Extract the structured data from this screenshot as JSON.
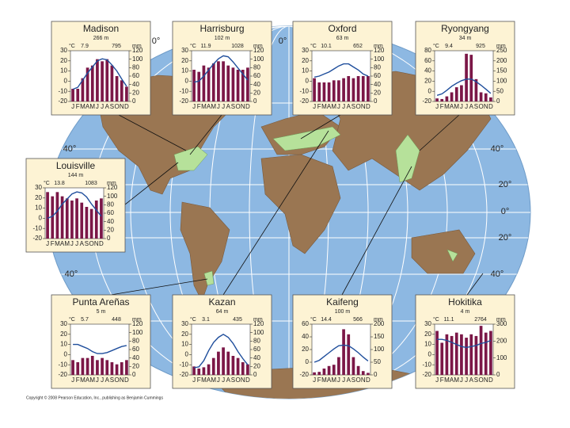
{
  "chart_data": [
    {
      "type": "bar",
      "title": "Madison",
      "subtitle": "266 m",
      "annotations": [
        "7.9",
        "795"
      ],
      "y_label": "°C",
      "y2_label": "mm",
      "categories": [
        "J",
        "F",
        "M",
        "A",
        "M",
        "J",
        "J",
        "A",
        "S",
        "O",
        "N",
        "D"
      ],
      "ylim": [
        -20,
        30
      ],
      "yticks": [
        -20,
        -10,
        0,
        10,
        20,
        30
      ],
      "y2lim": [
        0,
        120
      ],
      "y2ticks": [
        0,
        20,
        40,
        60,
        80,
        100,
        120
      ],
      "series": [
        {
          "color": "#7b1747",
          "axis": "y2",
          "values": [
            30,
            30,
            55,
            80,
            85,
            100,
            95,
            100,
            85,
            60,
            50,
            35
          ]
        },
        {
          "type": "line",
          "color": "#1f4e9c",
          "values": [
            -8,
            -6,
            1,
            8,
            14,
            20,
            22,
            21,
            16,
            10,
            2,
            -5
          ]
        }
      ]
    },
    {
      "type": "bar",
      "title": "Harrisburg",
      "subtitle": "102 m",
      "annotations": [
        "11.9",
        "1028"
      ],
      "y_label": "°C",
      "y2_label": "mm",
      "categories": [
        "J",
        "F",
        "M",
        "A",
        "M",
        "J",
        "J",
        "A",
        "S",
        "O",
        "N",
        "D"
      ],
      "ylim": [
        -20,
        30
      ],
      "yticks": [
        -20,
        -10,
        0,
        10,
        20,
        30
      ],
      "y2lim": [
        0,
        120
      ],
      "y2ticks": [
        0,
        20,
        40,
        60,
        80,
        100,
        120
      ],
      "series": [
        {
          "color": "#7b1747",
          "axis": "y2",
          "values": [
            75,
            70,
            85,
            80,
            90,
            95,
            95,
            85,
            80,
            75,
            75,
            80
          ]
        },
        {
          "type": "line",
          "color": "#1f4e9c",
          "values": [
            -1,
            0,
            5,
            11,
            17,
            22,
            25,
            24,
            19,
            13,
            7,
            1
          ]
        }
      ]
    },
    {
      "type": "bar",
      "title": "Oxford",
      "subtitle": "63 m",
      "annotations": [
        "10.1",
        "652"
      ],
      "y_label": "°C",
      "y2_label": "mm",
      "categories": [
        "J",
        "F",
        "M",
        "A",
        "M",
        "J",
        "J",
        "A",
        "S",
        "O",
        "N",
        "D"
      ],
      "ylim": [
        -20,
        30
      ],
      "yticks": [
        -20,
        -10,
        0,
        10,
        20,
        30
      ],
      "y2lim": [
        0,
        120
      ],
      "y2ticks": [
        0,
        20,
        40,
        60,
        80,
        100,
        120
      ],
      "series": [
        {
          "color": "#7b1747",
          "axis": "y2",
          "values": [
            55,
            45,
            45,
            45,
            50,
            50,
            55,
            60,
            55,
            60,
            60,
            60
          ]
        },
        {
          "type": "line",
          "color": "#1f4e9c",
          "values": [
            4,
            5,
            7,
            9,
            12,
            15,
            17,
            17,
            14,
            11,
            7,
            5
          ]
        }
      ]
    },
    {
      "type": "bar",
      "title": "Ryongyang",
      "subtitle": "34 m",
      "annotations": [
        "9.4",
        "925"
      ],
      "y_label": "°C",
      "y2_label": "mm",
      "categories": [
        "J",
        "F",
        "M",
        "A",
        "M",
        "J",
        "J",
        "A",
        "S",
        "O",
        "N",
        "D"
      ],
      "ylim": [
        -20,
        80
      ],
      "yticks": [
        -20,
        0,
        20,
        40,
        60,
        80
      ],
      "y2lim": [
        0,
        250
      ],
      "y2ticks": [
        0,
        50,
        100,
        150,
        200,
        250
      ],
      "series": [
        {
          "color": "#7b1747",
          "axis": "y2",
          "values": [
            15,
            12,
            25,
            45,
            70,
            80,
            235,
            230,
            110,
            45,
            40,
            20
          ]
        },
        {
          "type": "line",
          "color": "#1f4e9c",
          "values": [
            -8,
            -5,
            2,
            10,
            16,
            21,
            24,
            24,
            19,
            12,
            4,
            -4
          ]
        }
      ]
    },
    {
      "type": "bar",
      "title": "Louisville",
      "subtitle": "144 m",
      "annotations": [
        "13.8",
        "1083"
      ],
      "y_label": "°C",
      "y2_label": "mm",
      "categories": [
        "J",
        "F",
        "M",
        "A",
        "M",
        "J",
        "J",
        "A",
        "S",
        "O",
        "N",
        "D"
      ],
      "ylim": [
        -20,
        30
      ],
      "yticks": [
        -20,
        -10,
        0,
        10,
        20,
        30
      ],
      "y2lim": [
        0,
        120
      ],
      "y2ticks": [
        0,
        20,
        40,
        60,
        80,
        100,
        120
      ],
      "series": [
        {
          "color": "#7b1747",
          "axis": "y2",
          "values": [
            110,
            100,
            110,
            100,
            95,
            90,
            95,
            85,
            75,
            70,
            90,
            95
          ]
        },
        {
          "type": "line",
          "color": "#1f4e9c",
          "values": [
            0,
            2,
            7,
            14,
            19,
            24,
            26,
            25,
            21,
            14,
            8,
            2
          ]
        }
      ]
    },
    {
      "type": "bar",
      "title": "Punta Areñas",
      "subtitle": "5 m",
      "annotations": [
        "5.7",
        "448"
      ],
      "y_label": "°C",
      "y2_label": "mm",
      "categories": [
        "J",
        "F",
        "M",
        "A",
        "M",
        "J",
        "J",
        "A",
        "S",
        "O",
        "N",
        "D"
      ],
      "ylim": [
        -20,
        30
      ],
      "yticks": [
        -20,
        -10,
        0,
        10,
        20,
        30
      ],
      "y2lim": [
        0,
        120
      ],
      "y2ticks": [
        0,
        20,
        40,
        60,
        80,
        100,
        120
      ],
      "series": [
        {
          "color": "#7b1747",
          "axis": "y2",
          "values": [
            35,
            30,
            40,
            40,
            45,
            35,
            40,
            35,
            30,
            25,
            30,
            35
          ]
        },
        {
          "type": "line",
          "color": "#1f4e9c",
          "values": [
            10,
            10,
            8,
            6,
            3,
            1,
            1,
            2,
            4,
            6,
            8,
            9
          ]
        }
      ]
    },
    {
      "type": "bar",
      "title": "Kazan",
      "subtitle": "64 m",
      "annotations": [
        "3.1",
        "435"
      ],
      "y_label": "°C",
      "y2_label": "mm",
      "categories": [
        "J",
        "F",
        "M",
        "A",
        "M",
        "J",
        "J",
        "A",
        "S",
        "O",
        "N",
        "D"
      ],
      "ylim": [
        -20,
        30
      ],
      "yticks": [
        -20,
        -10,
        0,
        10,
        20,
        30
      ],
      "y2lim": [
        0,
        120
      ],
      "y2ticks": [
        0,
        20,
        40,
        60,
        80,
        100,
        120
      ],
      "series": [
        {
          "color": "#7b1747",
          "axis": "y2",
          "values": [
            20,
            15,
            18,
            25,
            40,
            55,
            65,
            55,
            45,
            40,
            30,
            25
          ]
        },
        {
          "type": "line",
          "color": "#1f4e9c",
          "values": [
            -13,
            -12,
            -6,
            4,
            12,
            17,
            20,
            17,
            11,
            3,
            -4,
            -10
          ]
        }
      ]
    },
    {
      "type": "bar",
      "title": "Kaifeng",
      "subtitle": "100 m",
      "annotations": [
        "14.4",
        "566"
      ],
      "y_label": "°C",
      "y2_label": "mm",
      "categories": [
        "J",
        "F",
        "M",
        "A",
        "M",
        "J",
        "J",
        "A",
        "S",
        "O",
        "N",
        "D"
      ],
      "ylim": [
        -20,
        60
      ],
      "yticks": [
        -20,
        0,
        20,
        40,
        60
      ],
      "y2lim": [
        0,
        200
      ],
      "y2ticks": [
        0,
        50,
        100,
        150,
        200
      ],
      "series": [
        {
          "color": "#7b1747",
          "axis": "y2",
          "values": [
            10,
            12,
            25,
            35,
            40,
            70,
            180,
            160,
            70,
            35,
            15,
            8
          ]
        },
        {
          "type": "line",
          "color": "#1f4e9c",
          "values": [
            0,
            3,
            9,
            15,
            21,
            26,
            27,
            26,
            21,
            15,
            8,
            2
          ]
        }
      ]
    },
    {
      "type": "bar",
      "title": "Hokitika",
      "subtitle": "4 m",
      "annotations": [
        "11.1",
        "2764"
      ],
      "y_label": "°C",
      "y2_label": "mm",
      "categories": [
        "J",
        "F",
        "M",
        "A",
        "M",
        "J",
        "J",
        "A",
        "S",
        "O",
        "N",
        "D"
      ],
      "ylim": [
        -20,
        30
      ],
      "yticks": [
        -20,
        -10,
        0,
        10,
        20,
        30
      ],
      "y2lim": [
        0,
        300
      ],
      "y2ticks": [
        0,
        100,
        200,
        300
      ],
      "series": [
        {
          "color": "#7b1747",
          "axis": "y2",
          "values": [
            260,
            190,
            240,
            230,
            250,
            240,
            220,
            240,
            230,
            290,
            250,
            260
          ]
        },
        {
          "type": "line",
          "color": "#1f4e9c",
          "values": [
            15,
            15,
            14,
            12,
            10,
            8,
            7,
            8,
            9,
            11,
            12,
            14
          ]
        }
      ]
    }
  ],
  "map_labels": [
    "0°",
    "0°",
    "40°",
    "40°",
    "20°",
    "0°",
    "20°",
    "40°",
    "40°"
  ],
  "copyright": "Copyright © 2008 Pearson Education, Inc., publishing as Benjamin Cummings"
}
